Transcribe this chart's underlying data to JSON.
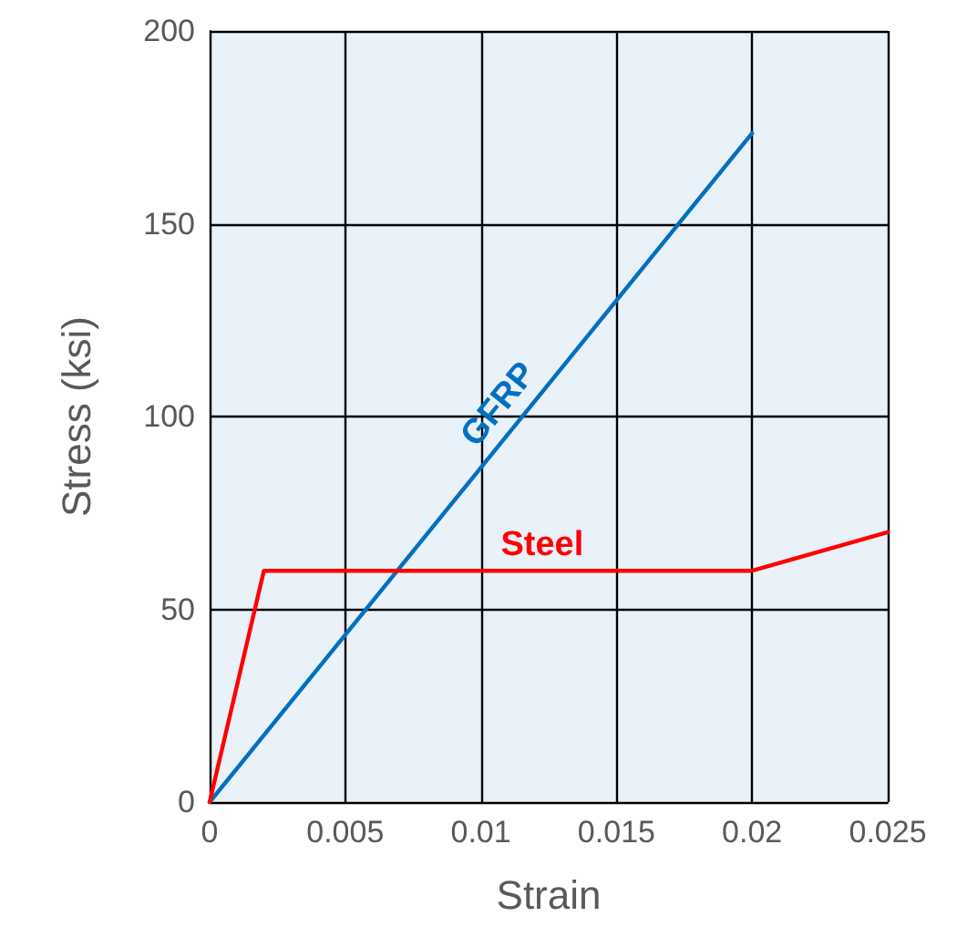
{
  "chart_data": {
    "type": "line",
    "xlabel": "Strain",
    "ylabel": "Stress (ksi)",
    "xlim": [
      0,
      0.025
    ],
    "xticks": [
      0,
      0.005,
      0.01,
      0.015,
      0.02,
      0.025
    ],
    "ylim": [
      0,
      200
    ],
    "yticks": [
      0,
      50,
      100,
      150,
      200
    ],
    "grid": true,
    "legend": false,
    "marker": "none",
    "line_style": "solid",
    "series": [
      {
        "name": "GFRP",
        "color": "#0070c0",
        "x": [
          0,
          0.02
        ],
        "values": [
          0,
          173.5
        ]
      },
      {
        "name": "Steel",
        "color": "#ff0000",
        "x": [
          0,
          0.002,
          0.02,
          0.025
        ],
        "values": [
          0,
          60,
          60,
          70
        ]
      }
    ]
  }
}
